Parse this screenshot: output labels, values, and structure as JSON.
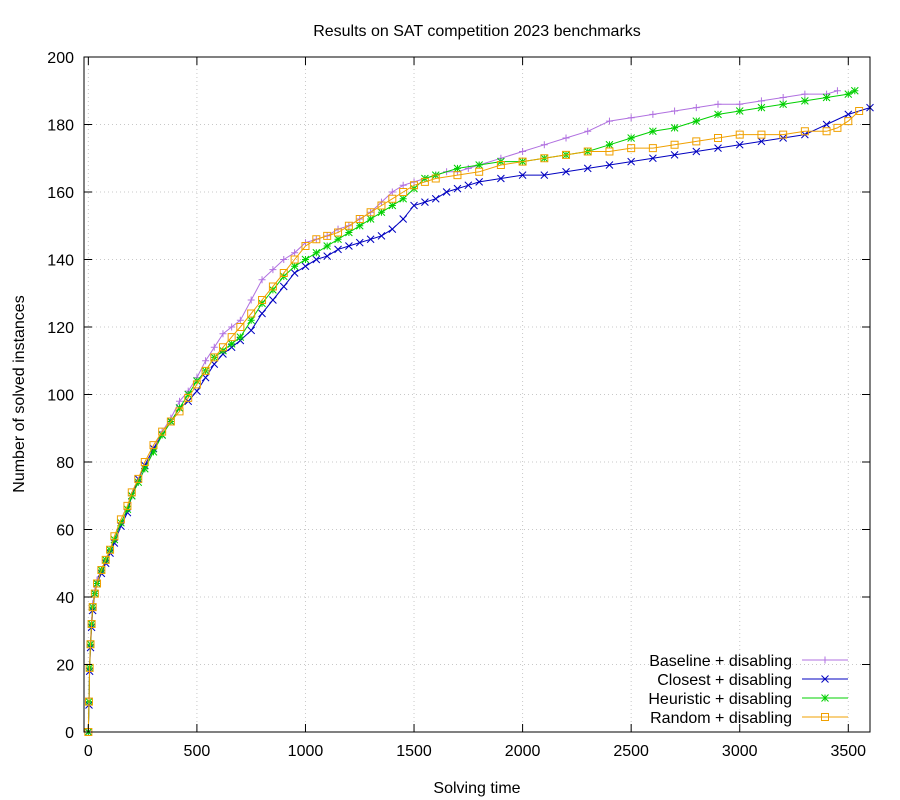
{
  "chart_data": {
    "type": "line",
    "title": "Results on SAT competition 2023 benchmarks",
    "xlabel": "Solving time",
    "ylabel": "Number of solved instances",
    "xlim": [
      -20,
      3600
    ],
    "ylim": [
      0,
      200
    ],
    "xticks": [
      0,
      500,
      1000,
      1500,
      2000,
      2500,
      3000,
      3500
    ],
    "yticks": [
      0,
      20,
      40,
      60,
      80,
      100,
      120,
      140,
      160,
      180,
      200
    ],
    "grid": true,
    "legend_position": "bottom-right",
    "series": [
      {
        "name": "Baseline + disabling",
        "color": "#b070e0",
        "marker": "plus",
        "x": [
          0,
          3,
          6,
          10,
          15,
          20,
          30,
          40,
          60,
          80,
          100,
          120,
          150,
          180,
          200,
          230,
          260,
          300,
          340,
          380,
          420,
          460,
          500,
          540,
          580,
          620,
          660,
          700,
          750,
          800,
          850,
          900,
          950,
          1000,
          1050,
          1100,
          1150,
          1200,
          1250,
          1300,
          1350,
          1400,
          1450,
          1500,
          1550,
          1600,
          1650,
          1700,
          1750,
          1800,
          1900,
          2000,
          2100,
          2200,
          2300,
          2400,
          2500,
          2600,
          2700,
          2800,
          2900,
          3000,
          3100,
          3200,
          3300,
          3400,
          3450
        ],
        "y": [
          0,
          10,
          20,
          27,
          33,
          38,
          42,
          45,
          48,
          51,
          54,
          57,
          62,
          66,
          70,
          74,
          78,
          84,
          89,
          93,
          98,
          101,
          105,
          110,
          114,
          118,
          120,
          122,
          128,
          134,
          137,
          140,
          142,
          145,
          146,
          147,
          149,
          150,
          152,
          154,
          157,
          160,
          162,
          163,
          164,
          165,
          166,
          166,
          167,
          168,
          170,
          172,
          174,
          176,
          178,
          181,
          182,
          183,
          184,
          185,
          186,
          186,
          187,
          188,
          189,
          189,
          190
        ]
      },
      {
        "name": "Closest + disabling",
        "color": "#0000c0",
        "marker": "cross",
        "x": [
          0,
          3,
          6,
          10,
          15,
          20,
          30,
          40,
          60,
          80,
          100,
          120,
          150,
          180,
          200,
          230,
          260,
          300,
          340,
          380,
          420,
          460,
          500,
          540,
          580,
          620,
          660,
          700,
          750,
          800,
          850,
          900,
          950,
          1000,
          1050,
          1100,
          1150,
          1200,
          1250,
          1300,
          1350,
          1400,
          1450,
          1500,
          1550,
          1600,
          1650,
          1700,
          1750,
          1800,
          1900,
          2000,
          2100,
          2200,
          2300,
          2400,
          2500,
          2600,
          2700,
          2800,
          2900,
          3000,
          3100,
          3200,
          3300,
          3400,
          3500,
          3600
        ],
        "y": [
          0,
          8,
          18,
          25,
          31,
          36,
          41,
          44,
          47,
          50,
          53,
          56,
          61,
          65,
          70,
          75,
          79,
          84,
          88,
          92,
          96,
          98,
          101,
          105,
          109,
          112,
          114,
          116,
          119,
          124,
          128,
          132,
          136,
          138,
          140,
          141,
          143,
          144,
          145,
          146,
          147,
          149,
          152,
          156,
          157,
          158,
          160,
          161,
          162,
          163,
          164,
          165,
          165,
          166,
          167,
          168,
          169,
          170,
          171,
          172,
          173,
          174,
          175,
          176,
          177,
          180,
          183,
          185
        ]
      },
      {
        "name": "Heuristic + disabling",
        "color": "#00d000",
        "marker": "star",
        "x": [
          0,
          3,
          6,
          10,
          15,
          20,
          30,
          40,
          60,
          80,
          100,
          120,
          150,
          180,
          200,
          230,
          260,
          300,
          340,
          380,
          420,
          460,
          500,
          540,
          580,
          620,
          660,
          700,
          750,
          800,
          850,
          900,
          950,
          1000,
          1050,
          1100,
          1150,
          1200,
          1250,
          1300,
          1350,
          1400,
          1450,
          1500,
          1550,
          1600,
          1700,
          1800,
          1900,
          2000,
          2100,
          2200,
          2300,
          2400,
          2500,
          2600,
          2700,
          2800,
          2900,
          3000,
          3100,
          3200,
          3300,
          3400,
          3500,
          3530
        ],
        "y": [
          0,
          9,
          19,
          26,
          32,
          37,
          41,
          44,
          48,
          51,
          54,
          57,
          62,
          66,
          70,
          74,
          78,
          83,
          88,
          92,
          96,
          100,
          104,
          107,
          111,
          113,
          115,
          117,
          122,
          127,
          131,
          135,
          138,
          140,
          142,
          144,
          146,
          148,
          150,
          152,
          154,
          156,
          158,
          161,
          164,
          165,
          167,
          168,
          169,
          169,
          170,
          171,
          172,
          174,
          176,
          178,
          179,
          181,
          183,
          184,
          185,
          186,
          187,
          188,
          189,
          190
        ]
      },
      {
        "name": "Random + disabling",
        "color": "#f0a000",
        "marker": "square",
        "x": [
          0,
          3,
          6,
          10,
          15,
          20,
          30,
          40,
          60,
          80,
          100,
          120,
          150,
          180,
          200,
          230,
          260,
          300,
          340,
          380,
          420,
          460,
          500,
          540,
          580,
          620,
          660,
          700,
          750,
          800,
          850,
          900,
          950,
          1000,
          1050,
          1100,
          1150,
          1200,
          1250,
          1300,
          1350,
          1400,
          1450,
          1500,
          1550,
          1600,
          1700,
          1800,
          1900,
          2000,
          2100,
          2200,
          2300,
          2400,
          2500,
          2600,
          2700,
          2800,
          2900,
          3000,
          3100,
          3200,
          3300,
          3400,
          3450,
          3500,
          3550
        ],
        "y": [
          0,
          9,
          19,
          26,
          32,
          37,
          41,
          44,
          48,
          51,
          54,
          58,
          63,
          67,
          71,
          75,
          80,
          85,
          89,
          92,
          95,
          99,
          103,
          107,
          111,
          114,
          117,
          120,
          124,
          128,
          132,
          136,
          140,
          144,
          146,
          147,
          148,
          150,
          152,
          154,
          156,
          158,
          160,
          162,
          163,
          164,
          165,
          166,
          168,
          169,
          170,
          171,
          172,
          172,
          173,
          173,
          174,
          175,
          176,
          177,
          177,
          177,
          178,
          178,
          179,
          181,
          184
        ]
      }
    ]
  }
}
